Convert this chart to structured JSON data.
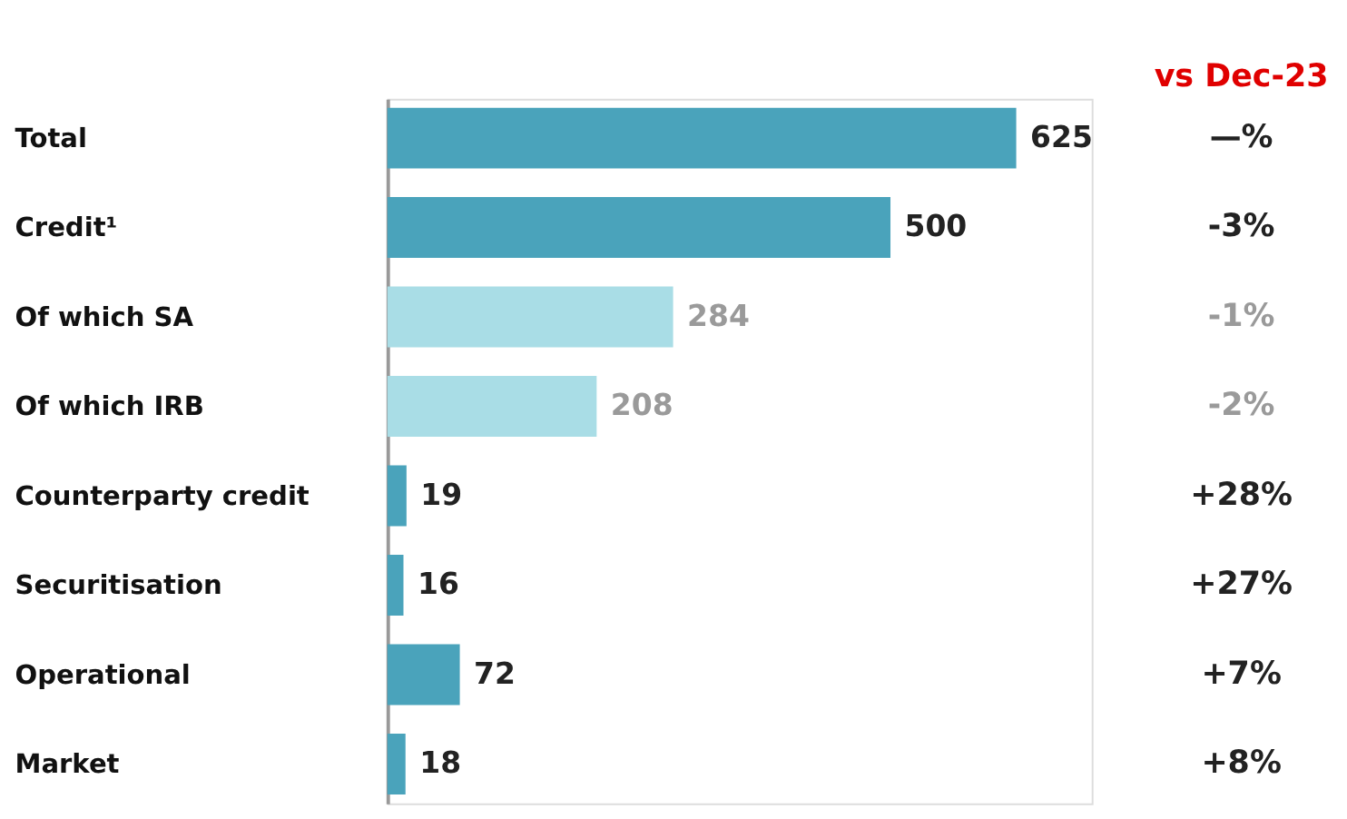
{
  "chart_data": {
    "type": "bar",
    "orientation": "horizontal",
    "subtitle": "vs Dec-23",
    "categories": [
      "Total",
      "Credit¹",
      "Of which SA",
      "Of which IRB",
      "Counterparty credit",
      "Securitisation",
      "Operational",
      "Market"
    ],
    "values": [
      625,
      500,
      284,
      208,
      19,
      16,
      72,
      18
    ],
    "colors": [
      "#4aa3bb",
      "#4aa3bb",
      "#a9dde6",
      "#a9dde6",
      "#4aa3bb",
      "#4aa3bb",
      "#4aa3bb",
      "#4aa3bb"
    ],
    "data_labels": true,
    "annotations": [
      "—%",
      "-3%",
      "-1%",
      "-2%",
      "+28%",
      "+27%",
      "+7%",
      "+8%"
    ]
  }
}
